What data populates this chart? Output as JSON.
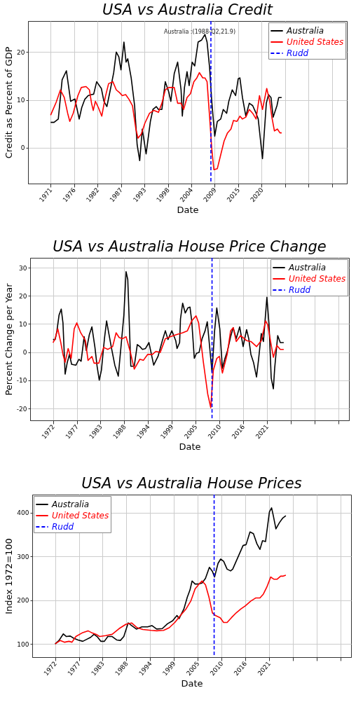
{
  "chart_data": [
    {
      "type": "line",
      "title": "USA vs Australia Credit",
      "xlabel": "Date",
      "ylabel": "Credit as Percent of GDP",
      "xlim": [
        1965.7,
        2040.5
      ],
      "xticks": [
        {
          "value": 1971,
          "label": "1971"
        },
        {
          "value": 1976.5,
          "label": "1976"
        },
        {
          "value": 1982,
          "label": "1982"
        },
        {
          "value": 1987.5,
          "label": "1987"
        },
        {
          "value": 1993,
          "label": "1993"
        },
        {
          "value": 1998.5,
          "label": "1998"
        },
        {
          "value": 2004,
          "label": "2004"
        },
        {
          "value": 2009.5,
          "label": "2009"
        },
        {
          "value": 2015,
          "label": "2015"
        },
        {
          "value": 2020.5,
          "label": "2020"
        },
        {
          "value": 2026,
          "label": null
        },
        {
          "value": 2031.5,
          "label": null
        },
        {
          "value": 2037,
          "label": null
        }
      ],
      "ylim": [
        -7.5,
        26.5
      ],
      "yticks": [
        0,
        10,
        20
      ],
      "grid": true,
      "legend": "top right",
      "series": [
        {
          "name": "Australia",
          "color": "#000000",
          "x": [
            1971,
            1971.8,
            1972.8,
            1973.7,
            1974.7,
            1975.7,
            1976.7,
            1977.7,
            1978.3,
            1979.0,
            1979.8,
            1980.6,
            1981.1,
            1981.8,
            1982.9,
            1983.5,
            1984.2,
            1985.0,
            1985.8,
            1986.4,
            1987.0,
            1987.5,
            1988.2,
            1988.7,
            1989.1,
            1989.9,
            1990.7,
            1991.3,
            1991.9,
            1992.5,
            1993.4,
            1994.4,
            1995.0,
            1995.8,
            1996.3,
            1997.1,
            1997.9,
            1998.7,
            1999.2,
            2000.0,
            2000.8,
            2001.6,
            2001.9,
            2002.4,
            2003.0,
            2003.5,
            2004.2,
            2004.8,
            2005.6,
            2006.4,
            2007.2,
            2007.7,
            2008.3,
            2008.8,
            2009.5,
            2010.1,
            2010.9,
            2011.5,
            2012.3,
            2012.8,
            2013.6,
            2014.4,
            2015.0,
            2015.4,
            2016.0,
            2016.8,
            2017.6,
            2018.4,
            2019.2,
            2019.7,
            2020.7,
            2021.6,
            2022.1,
            2022.7,
            2023.2,
            2024.1,
            2024.5,
            2025.2
          ],
          "values": [
            5.3,
            5.3,
            6.0,
            14.2,
            16.1,
            9.7,
            10.2,
            6.0,
            8.4,
            10.1,
            10.9,
            11.1,
            11.2,
            13.8,
            12.4,
            9.7,
            8.6,
            12.1,
            15.7,
            20.0,
            19.0,
            16.3,
            22.1,
            17.9,
            18.6,
            14.6,
            8.8,
            0.6,
            -2.7,
            3.9,
            -1.3,
            5.5,
            8.0,
            8.6,
            8.0,
            8.0,
            13.8,
            11.7,
            9.7,
            15.5,
            17.9,
            12.1,
            6.6,
            12.6,
            15.9,
            13.0,
            17.9,
            17.1,
            22.1,
            22.5,
            23.7,
            22.1,
            16.7,
            9.7,
            2.4,
            5.5,
            6.0,
            8.0,
            7.2,
            9.7,
            12.1,
            10.9,
            14.4,
            14.6,
            10.5,
            6.6,
            9.3,
            8.8,
            7.2,
            6.0,
            -2.3,
            9.3,
            11.1,
            10.5,
            6.4,
            8.8,
            10.5,
            10.5
          ]
        },
        {
          "name": "United States",
          "color": "#ff0000",
          "x": [
            1971,
            1972.3,
            1973.3,
            1974.2,
            1975.0,
            1975.5,
            1976.3,
            1977.4,
            1978.2,
            1979.3,
            1980.1,
            1980.6,
            1981.0,
            1981.5,
            1982.2,
            1983.0,
            1983.8,
            1984.6,
            1985.6,
            1986.4,
            1987.2,
            1987.8,
            1988.6,
            1989.4,
            1990.2,
            1991.0,
            1991.5,
            1992.3,
            1993.1,
            1994.2,
            1995.2,
            1996.3,
            1997.1,
            1997.9,
            1998.7,
            2000.0,
            2000.8,
            2001.6,
            2002.2,
            2003.0,
            2003.8,
            2004.6,
            2005.3,
            2005.9,
            2006.7,
            2007.2,
            2007.7,
            2008.3,
            2008.8,
            2009.3,
            2010.1,
            2010.9,
            2011.7,
            2012.5,
            2013.3,
            2013.9,
            2014.7,
            2015.4,
            2016.0,
            2016.8,
            2017.6,
            2018.4,
            2019.2,
            2020.0,
            2020.7,
            2021.7,
            2022.4,
            2022.9,
            2023.5,
            2024.2,
            2024.8,
            2025.2
          ],
          "values": [
            6.8,
            9.5,
            12.1,
            10.5,
            7.2,
            5.5,
            7.2,
            10.9,
            12.6,
            12.8,
            12.1,
            9.3,
            7.8,
            9.7,
            8.4,
            6.6,
            10.5,
            13.4,
            13.8,
            12.1,
            11.5,
            10.9,
            11.1,
            10.1,
            8.8,
            3.9,
            2.0,
            2.9,
            5.1,
            7.2,
            7.8,
            7.4,
            9.3,
            12.1,
            12.6,
            12.6,
            9.3,
            9.3,
            8.0,
            10.5,
            11.3,
            13.8,
            14.6,
            15.7,
            14.6,
            14.6,
            13.8,
            6.4,
            -0.2,
            -4.6,
            -4.4,
            -1.5,
            1.4,
            3.1,
            3.9,
            5.7,
            5.5,
            6.6,
            6.0,
            6.4,
            8.0,
            7.2,
            6.0,
            10.9,
            8.0,
            12.4,
            9.7,
            6.4,
            3.5,
            3.9,
            3.1,
            3.1
          ]
        }
      ],
      "ref_lines": [
        {
          "axis": "x",
          "value": 2008.6,
          "label": "Rudd",
          "color": "#0000ff",
          "line_style": "dashed"
        }
      ],
      "annotations": [
        "Australia :(1988-Q2,21.9)"
      ]
    },
    {
      "type": "line",
      "title": "USA vs Australia House Price Change",
      "xlabel": "Date",
      "ylabel": "Percent Change per Year",
      "xlim": [
        1966.7,
        2040.5
      ],
      "xticks": [
        {
          "value": 1972,
          "label": "1972"
        },
        {
          "value": 1977.5,
          "label": "1977"
        },
        {
          "value": 1983,
          "label": "1983"
        },
        {
          "value": 1988.5,
          "label": "1988"
        },
        {
          "value": 1994,
          "label": "1994"
        },
        {
          "value": 1999.5,
          "label": "1999"
        },
        {
          "value": 2005,
          "label": "2005"
        },
        {
          "value": 2010.5,
          "label": "2010"
        },
        {
          "value": 2016,
          "label": "2016"
        },
        {
          "value": 2021.5,
          "label": "2021"
        },
        {
          "value": 2027,
          "label": null
        },
        {
          "value": 2032.5,
          "label": null
        },
        {
          "value": 2038,
          "label": null
        }
      ],
      "ylim": [
        -24.2,
        33.5
      ],
      "yticks": [
        -20,
        -10,
        0,
        10,
        20,
        30
      ],
      "grid": true,
      "legend": "top right",
      "series": [
        {
          "name": "Australia",
          "color": "#000000",
          "x": [
            1972,
            1972.5,
            1972.9,
            1973.4,
            1973.9,
            1974.3,
            1974.8,
            1975.3,
            1975.8,
            1976.3,
            1977.3,
            1978.0,
            1978.5,
            1979.2,
            1979.7,
            1980.4,
            1981.0,
            1981.7,
            1982.2,
            1982.7,
            1983.2,
            1983.9,
            1984.4,
            1984.8,
            1985.5,
            1986.3,
            1987.1,
            1987.9,
            1988.4,
            1988.9,
            1989.3,
            1990.0,
            1990.8,
            1991.5,
            1992.1,
            1992.7,
            1993.4,
            1994.2,
            1995.3,
            1996.3,
            1997.3,
            1998.0,
            1998.6,
            1999.5,
            2000.4,
            2000.7,
            2001.3,
            2001.5,
            2002.0,
            2002.6,
            2003.2,
            2003.7,
            2004.1,
            2004.7,
            2005.2,
            2005.8,
            2006.5,
            2007.2,
            2007.7,
            2008.8,
            2009.4,
            2009.9,
            2010.6,
            2011.2,
            2011.8,
            2012.4,
            2013.1,
            2013.7,
            2014.4,
            2015.2,
            2016.0,
            2016.8,
            2017.3,
            2017.8,
            2018.4,
            2019.1,
            2019.6,
            2020.2,
            2020.7,
            2021.5,
            2022.0,
            2022.5,
            2023.0,
            2023.3,
            2024.0,
            2024.6,
            2025.4
          ],
          "values": [
            4.5,
            4.5,
            7.6,
            13.2,
            15.3,
            10.4,
            -7.8,
            -3.6,
            -0.8,
            -4.3,
            -4.6,
            -2.5,
            -3.2,
            5.5,
            0.6,
            6.2,
            9.0,
            1.7,
            -5.0,
            -9.9,
            -6.4,
            4.8,
            11.1,
            7.6,
            1.7,
            -4.6,
            -8.5,
            4.8,
            13.2,
            28.6,
            25.8,
            -5.0,
            -5.0,
            2.7,
            2.0,
            1.0,
            1.3,
            3.4,
            -4.6,
            -1.5,
            4.1,
            7.6,
            4.5,
            7.6,
            4.1,
            1.3,
            3.4,
            11.8,
            17.4,
            13.9,
            15.7,
            16.0,
            11.1,
            -2.2,
            -0.4,
            -0.1,
            4.8,
            7.6,
            10.8,
            -7.1,
            7.6,
            15.7,
            8.3,
            -5.7,
            -2.2,
            0.6,
            5.5,
            8.7,
            4.8,
            9.0,
            2.0,
            8.0,
            4.8,
            -0.8,
            -3.6,
            -8.8,
            -2.2,
            6.6,
            3.8,
            19.5,
            9.7,
            -9.2,
            -13.0,
            -5.7,
            5.9,
            3.4,
            3.4
          ]
        },
        {
          "name": "United States",
          "color": "#ff0000",
          "x": [
            1972,
            1972.5,
            1973.1,
            1973.8,
            1974.3,
            1974.8,
            1975.5,
            1976.2,
            1976.9,
            1977.5,
            1978.4,
            1979.5,
            1980.1,
            1981.0,
            1981.5,
            1982.6,
            1983.7,
            1984.7,
            1985.8,
            1986.6,
            1987.3,
            1988.1,
            1988.9,
            1989.9,
            1990.8,
            1992.1,
            1992.9,
            1993.9,
            1995.0,
            1995.8,
            1996.8,
            1998.0,
            1999.2,
            2000.5,
            2002.0,
            2003.1,
            2004.1,
            2005.1,
            2005.7,
            2006.8,
            2007.8,
            2008.5,
            2009.1,
            2009.9,
            2010.5,
            2011.2,
            2012.3,
            2013.1,
            2013.7,
            2014.4,
            2015.4,
            2016.8,
            2017.8,
            2019.1,
            2020.2,
            2021.2,
            2021.7,
            2022.4,
            2023.0,
            2023.8,
            2024.6,
            2025.4
          ],
          "values": [
            3.4,
            4.8,
            8.3,
            3.4,
            -0.8,
            -3.6,
            1.3,
            -2.2,
            8.3,
            10.4,
            6.9,
            4.1,
            -2.9,
            -1.5,
            -3.9,
            -3.9,
            1.7,
            1.0,
            2.0,
            6.9,
            5.2,
            4.8,
            5.5,
            0.0,
            -6.0,
            -2.5,
            -2.9,
            -0.8,
            -0.8,
            0.3,
            -0.1,
            4.8,
            5.5,
            6.2,
            6.9,
            7.6,
            11.1,
            12.9,
            10.4,
            -3.6,
            -14.8,
            -19.7,
            -6.4,
            -2.2,
            -1.5,
            -7.4,
            -0.8,
            7.6,
            8.7,
            3.8,
            5.9,
            4.1,
            3.8,
            2.0,
            4.1,
            11.1,
            9.7,
            3.4,
            -1.8,
            2.4,
            1.0,
            1.0
          ]
        }
      ],
      "ref_lines": [
        {
          "axis": "x",
          "value": 2008.8,
          "label": "Rudd",
          "color": "#0000ff",
          "line_style": "dashed"
        }
      ]
    },
    {
      "type": "line",
      "title": "USA vs Australia House Prices",
      "xlabel": "Date",
      "ylabel": "Index 1972=100",
      "xlim": [
        1966.7,
        2040.5
      ],
      "xticks": [
        {
          "value": 1972,
          "label": "1972"
        },
        {
          "value": 1977.5,
          "label": "1977"
        },
        {
          "value": 1983,
          "label": "1983"
        },
        {
          "value": 1988.5,
          "label": "1988"
        },
        {
          "value": 1994,
          "label": "1994"
        },
        {
          "value": 1999.5,
          "label": "1999"
        },
        {
          "value": 2005,
          "label": "2005"
        },
        {
          "value": 2010.5,
          "label": "2010"
        },
        {
          "value": 2016,
          "label": "2016"
        },
        {
          "value": 2021.5,
          "label": "2021"
        },
        {
          "value": 2027,
          "label": null
        },
        {
          "value": 2032.5,
          "label": null
        },
        {
          "value": 2038,
          "label": null
        }
      ],
      "ylim": [
        69.8,
        441.3
      ],
      "yticks": [
        100,
        200,
        300,
        400
      ],
      "grid": true,
      "legend": "top left",
      "series": [
        {
          "name": "Australia",
          "color": "#000000",
          "x": [
            1972,
            1972.9,
            1973.9,
            1974.6,
            1975.5,
            1976.3,
            1977.3,
            1978.4,
            1979.2,
            1980.2,
            1981.0,
            1981.8,
            1982.6,
            1983.4,
            1984.2,
            1985.2,
            1986.3,
            1987.1,
            1987.9,
            1988.9,
            1989.7,
            1990.8,
            1992.1,
            1993.4,
            1994.4,
            1995.5,
            1996.8,
            1998.0,
            1999.2,
            2000.2,
            2000.7,
            2001.8,
            2002.6,
            2003.2,
            2003.7,
            2004.4,
            2005.2,
            2006.0,
            2006.8,
            2007.7,
            2008.4,
            2008.9,
            2009.7,
            2010.3,
            2011.0,
            2011.8,
            2012.6,
            2013.1,
            2013.9,
            2014.7,
            2015.5,
            2016.2,
            2017.1,
            2017.9,
            2018.7,
            2019.4,
            2020.0,
            2020.7,
            2021.6,
            2022.1,
            2022.5,
            2023.1,
            2023.9,
            2024.7,
            2025.4
          ],
          "values": [
            100,
            108,
            123,
            117,
            118,
            113,
            109,
            106,
            110,
            115,
            122,
            116,
            106,
            106,
            117,
            117,
            109,
            108,
            117,
            148,
            142,
            134,
            139,
            139,
            142,
            134,
            135,
            146,
            153,
            165,
            158,
            180,
            207,
            223,
            244,
            237,
            237,
            239,
            250,
            275,
            266,
            253,
            284,
            294,
            289,
            271,
            267,
            271,
            289,
            307,
            325,
            327,
            356,
            352,
            329,
            316,
            336,
            334,
            402,
            411,
            393,
            363,
            377,
            388,
            393
          ]
        },
        {
          "name": "United States",
          "color": "#ff0000",
          "x": [
            1972,
            1973.2,
            1974.2,
            1975.2,
            1975.9,
            1976.8,
            1978.4,
            1979.6,
            1980.4,
            1981.5,
            1982.3,
            1983.7,
            1985.2,
            1986.8,
            1988.4,
            1989.7,
            1991.0,
            1992.3,
            1994.2,
            1995.5,
            1997.1,
            1998.4,
            1999.7,
            2001.0,
            2002.3,
            2003.4,
            2004.4,
            2005.5,
            2006.0,
            2006.8,
            2007.6,
            2008.4,
            2009.1,
            2010.2,
            2011.0,
            2011.8,
            2012.8,
            2013.9,
            2015.0,
            2016.0,
            2017.3,
            2018.4,
            2019.4,
            2020.2,
            2021.0,
            2021.9,
            2022.6,
            2023.4,
            2024.2,
            2024.8,
            2025.4
          ],
          "values": [
            100,
            108,
            104,
            106,
            104,
            117,
            126,
            130,
            126,
            122,
            117,
            119,
            122,
            135,
            145,
            148,
            137,
            133,
            131,
            130,
            131,
            137,
            149,
            165,
            180,
            198,
            226,
            239,
            244,
            235,
            207,
            171,
            165,
            160,
            149,
            149,
            160,
            171,
            180,
            187,
            198,
            205,
            205,
            214,
            230,
            253,
            248,
            248,
            255,
            255,
            257
          ]
        }
      ],
      "ref_lines": [
        {
          "axis": "x",
          "value": 2008.8,
          "label": "Rudd",
          "color": "#0000ff",
          "line_style": "dashed"
        }
      ]
    }
  ]
}
